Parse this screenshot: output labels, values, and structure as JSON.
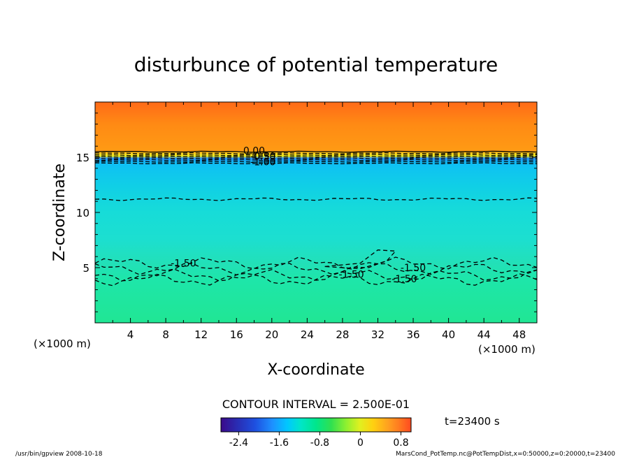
{
  "chart_data": {
    "type": "heatmap",
    "title": "disturbunce of potential temperature",
    "xlabel": "X-coordinate",
    "ylabel": "Z-coordinate",
    "x_unit_left": "(×1000 m)",
    "x_unit_right": "(×1000 m)",
    "xlim": [
      0,
      50
    ],
    "ylim": [
      0,
      20
    ],
    "x_ticks": [
      "4",
      "8",
      "12",
      "16",
      "20",
      "24",
      "28",
      "32",
      "36",
      "40",
      "44",
      "48"
    ],
    "y_ticks": [
      "5",
      "10",
      "15"
    ],
    "contour_labels": [
      "0.00",
      "-0.50",
      "-1.00",
      "-1.50",
      "-1.50",
      "-1.50",
      "-1.50"
    ],
    "contour_interval_text": "CONTOUR INTERVAL = 2.500E-01",
    "time_text": "t=23400 s",
    "colorbar": {
      "range": [
        -2.75,
        1.0
      ],
      "tick_labels": [
        "-2.4",
        "-1.6",
        "-0.8",
        "0",
        "0.8"
      ],
      "colors": [
        "#3b0a8a",
        "#2a2ab0",
        "#1e50e0",
        "#1e90ff",
        "#00c8ff",
        "#00e6c8",
        "#00e68c",
        "#30e050",
        "#90f030",
        "#e0f020",
        "#ffd010",
        "#ffa020",
        "#ff7820",
        "#ff4a20"
      ]
    },
    "footer_left": "/usr/bin/gpview   2008-10-18",
    "footer_right": "MarsCond_PotTemp.nc@PotTempDist,x=0:50000,z=0:20000,t=23400"
  }
}
